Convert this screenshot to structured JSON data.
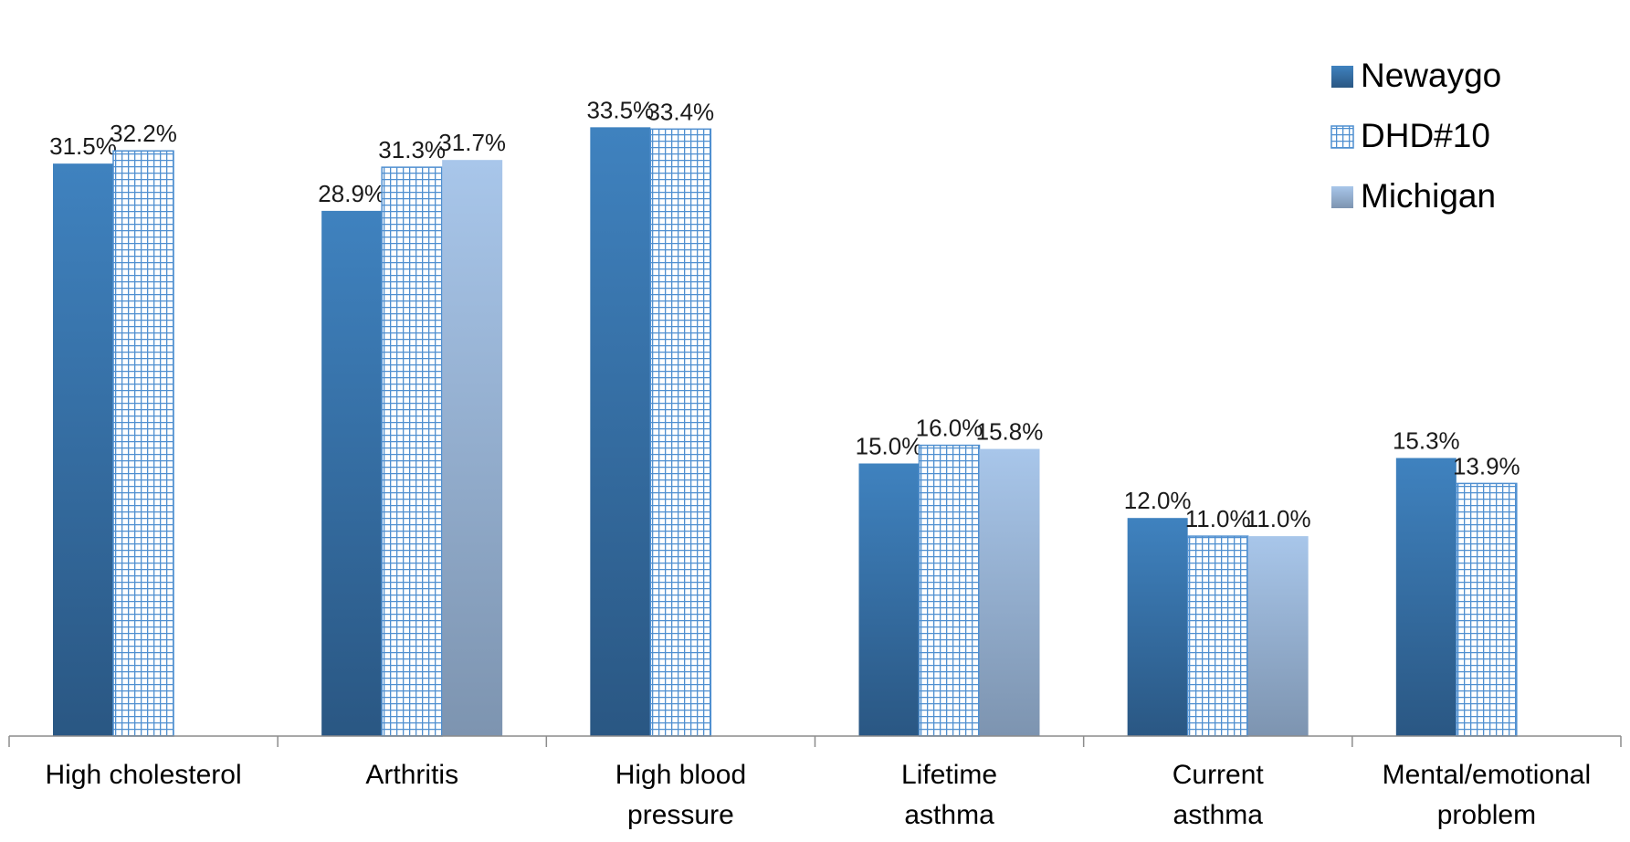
{
  "chart_data": {
    "type": "bar",
    "categories": [
      [
        "High cholesterol"
      ],
      [
        "Arthritis"
      ],
      [
        "High blood",
        "pressure"
      ],
      [
        "Lifetime",
        "asthma"
      ],
      [
        "Current",
        "asthma"
      ],
      [
        "Mental/emotional",
        "problem"
      ]
    ],
    "series": [
      {
        "name": "Newaygo",
        "values": [
          31.5,
          28.9,
          33.5,
          15.0,
          12.0,
          15.3
        ],
        "labels": [
          "31.5%",
          "28.9%",
          "33.5%",
          "15.0%",
          "12.0%",
          "15.3%"
        ],
        "color": "#3a7ab5",
        "style": "gradient-dark"
      },
      {
        "name": "DHD#10",
        "values": [
          32.2,
          31.3,
          33.4,
          16.0,
          11.0,
          13.9
        ],
        "labels": [
          "32.2%",
          "31.3%",
          "33.4%",
          "16.0%",
          "11.0%",
          "13.9%"
        ],
        "color": "#4f8fd0",
        "style": "grid-pattern"
      },
      {
        "name": "Michigan",
        "values": [
          null,
          31.7,
          null,
          15.8,
          11.0,
          null
        ],
        "labels": [
          null,
          "31.7%",
          null,
          "15.8%",
          "11.0%",
          null
        ],
        "color": "#a7c3e6",
        "style": "gradient-light"
      }
    ],
    "ylim": [
      0,
      35
    ],
    "legend_position": "top-right",
    "grid": false,
    "title": "",
    "xlabel": "",
    "ylabel": ""
  }
}
